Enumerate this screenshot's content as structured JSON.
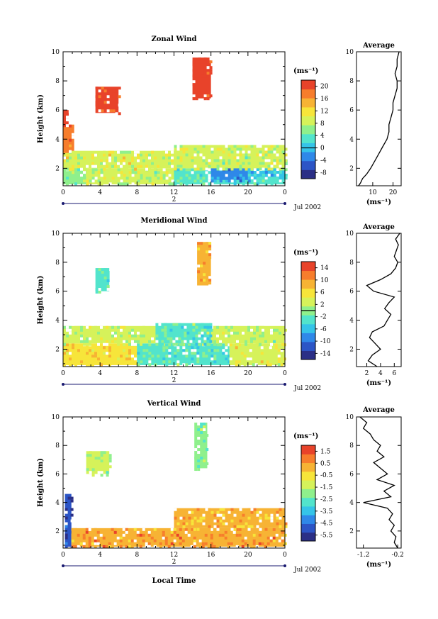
{
  "colors": {
    "colorbar": [
      "#2b2f86",
      "#2c55c6",
      "#2f88e8",
      "#35c4e8",
      "#52e4cc",
      "#8ff08c",
      "#d6f25a",
      "#f7e53a",
      "#f7b334",
      "#f77d2c",
      "#e8432a"
    ],
    "line": "#000000",
    "navy": "#1a1a70"
  },
  "chart_data": [
    {
      "type": "heatmap",
      "title": "Zonal Wind",
      "ylabel": "Height (km)",
      "xlabel": "",
      "x_ticks": [
        "0",
        "4",
        "8",
        "12",
        "16",
        "20",
        "0"
      ],
      "y_ticks": [
        "2",
        "4",
        "6",
        "8",
        "10"
      ],
      "xlim": [
        0,
        24
      ],
      "ylim": [
        0.8,
        10
      ],
      "day_label": "2",
      "date_label": "Jul 2002",
      "colorbar": {
        "unit": "(ms⁻¹)",
        "ticks": [
          "-8",
          "-4",
          "0",
          "4",
          "8",
          "12",
          "16",
          "20"
        ],
        "range": [
          -10,
          22
        ],
        "marked_level": 0
      },
      "cells": [
        {
          "t0": 0,
          "t1": 2.5,
          "z0": 0.9,
          "z1": 2.2,
          "v": 6
        },
        {
          "t0": 2.5,
          "t1": 12,
          "z0": 0.9,
          "z1": 2.0,
          "v": 8
        },
        {
          "t0": 12,
          "t1": 16,
          "z0": 0.9,
          "z1": 2.0,
          "v": 4
        },
        {
          "t0": 16,
          "t1": 24,
          "z0": 0.9,
          "z1": 2.2,
          "v": 2
        },
        {
          "t0": 16,
          "t1": 20,
          "z0": 1.2,
          "z1": 2.0,
          "v": -2
        },
        {
          "t0": 20,
          "t1": 24,
          "z0": 1.4,
          "z1": 2.6,
          "v": 0
        },
        {
          "t0": 0,
          "t1": 12,
          "z0": 2.0,
          "z1": 3.2,
          "v": 10
        },
        {
          "t0": 12,
          "t1": 24,
          "z0": 2.0,
          "z1": 3.6,
          "v": 8
        },
        {
          "t0": 0,
          "t1": 1.2,
          "z0": 3.2,
          "z1": 5.0,
          "v": 18
        },
        {
          "t0": 0,
          "t1": 0.6,
          "z0": 5.0,
          "z1": 6.0,
          "v": 20
        },
        {
          "t0": 3.5,
          "t1": 6,
          "z0": 5.8,
          "z1": 7.6,
          "v": 20
        },
        {
          "t0": 14,
          "t1": 16,
          "z0": 6.8,
          "z1": 9.6,
          "v": 22
        }
      ],
      "average_profile": {
        "title": "Average",
        "xlabel": "(ms⁻¹)",
        "x_ticks": [
          "10",
          "20"
        ],
        "xlim": [
          2,
          24
        ],
        "height": [
          0.8,
          1.0,
          1.3,
          1.6,
          2.0,
          2.5,
          3.0,
          3.5,
          4.0,
          4.5,
          5.0,
          5.5,
          6.0,
          6.5,
          7.0,
          7.5,
          8.0,
          8.5,
          9.0,
          9.5,
          10.0
        ],
        "values": [
          3,
          4,
          5,
          7,
          9,
          11,
          13,
          15,
          17,
          18,
          18,
          19,
          20,
          20,
          21,
          22,
          22,
          21,
          22,
          22,
          23
        ]
      }
    },
    {
      "type": "heatmap",
      "title": "Meridional Wind",
      "ylabel": "Height (km)",
      "xlabel": "",
      "x_ticks": [
        "0",
        "4",
        "8",
        "12",
        "16",
        "20",
        "0"
      ],
      "y_ticks": [
        "2",
        "4",
        "6",
        "8",
        "10"
      ],
      "xlim": [
        0,
        24
      ],
      "ylim": [
        0.8,
        10
      ],
      "day_label": "2",
      "date_label": "Jul 2002",
      "colorbar": {
        "unit": "(ms⁻¹)",
        "ticks": [
          "-14",
          "-10",
          "-6",
          "-2",
          "2",
          "6",
          "10",
          "14"
        ],
        "range": [
          -16,
          16
        ],
        "marked_level": 0
      },
      "cells": [
        {
          "t0": 0,
          "t1": 8,
          "z0": 0.9,
          "z1": 2.4,
          "v": 6
        },
        {
          "t0": 8,
          "t1": 18,
          "z0": 0.9,
          "z1": 2.4,
          "v": -2
        },
        {
          "t0": 18,
          "t1": 24,
          "z0": 0.9,
          "z1": 2.4,
          "v": 4
        },
        {
          "t0": 0,
          "t1": 24,
          "z0": 2.4,
          "z1": 3.6,
          "v": 2
        },
        {
          "t0": 10,
          "t1": 16,
          "z0": 2.4,
          "z1": 3.8,
          "v": -2
        },
        {
          "t0": 3.5,
          "t1": 5,
          "z0": 6.0,
          "z1": 7.6,
          "v": -2
        },
        {
          "t0": 14.5,
          "t1": 16,
          "z0": 6.4,
          "z1": 9.4,
          "v": 10
        }
      ],
      "average_profile": {
        "title": "Average",
        "xlabel": "(ms⁻¹)",
        "x_ticks": [
          "2",
          "4",
          "6"
        ],
        "xlim": [
          0.5,
          7
        ],
        "height": [
          0.8,
          1.2,
          1.6,
          2.0,
          2.4,
          2.8,
          3.2,
          3.6,
          4.0,
          4.4,
          4.8,
          5.2,
          5.6,
          6.0,
          6.4,
          6.8,
          7.2,
          7.6,
          8.0,
          8.4,
          8.8,
          9.2,
          9.6,
          10.0
        ],
        "values": [
          3.5,
          2.2,
          2.8,
          4.0,
          3.2,
          2.4,
          2.8,
          4.5,
          5.0,
          5.5,
          4.6,
          5.2,
          6.0,
          3.0,
          2.0,
          4.0,
          5.5,
          6.2,
          6.5,
          6.0,
          6.3,
          6.6,
          6.2,
          6.8
        ]
      }
    },
    {
      "type": "heatmap",
      "title": "Vertical Wind",
      "ylabel": "Height (km)",
      "xlabel": "Local Time",
      "x_ticks": [
        "0",
        "4",
        "8",
        "12",
        "16",
        "20",
        "0"
      ],
      "y_ticks": [
        "2",
        "4",
        "6",
        "8",
        "10"
      ],
      "xlim": [
        0,
        24
      ],
      "ylim": [
        0.8,
        10
      ],
      "day_label": "2",
      "date_label": "Jul 2002",
      "colorbar": {
        "unit": "(ms⁻¹)",
        "ticks": [
          "-5.5",
          "-4.5",
          "-3.5",
          "-2.5",
          "-1.5",
          "-0.5",
          "0.5",
          "1.5"
        ],
        "range": [
          -6,
          2
        ]
      },
      "cells": [
        {
          "t0": 0.2,
          "t1": 0.9,
          "z0": 0.9,
          "z1": 4.6,
          "v": -5
        },
        {
          "t0": 0.9,
          "t1": 24,
          "z0": 0.9,
          "z1": 2.2,
          "v": 0.5
        },
        {
          "t0": 12,
          "t1": 24,
          "z0": 2.2,
          "z1": 3.6,
          "v": 0
        },
        {
          "t0": 2.5,
          "t1": 5,
          "z0": 6.0,
          "z1": 7.6,
          "v": -1.5
        },
        {
          "t0": 14.2,
          "t1": 15.6,
          "z0": 6.4,
          "z1": 9.6,
          "v": -2.2
        }
      ],
      "average_profile": {
        "title": "Average",
        "xlabel": "(ms⁻¹)",
        "x_ticks": [
          "-1.2",
          "-0.2"
        ],
        "xlim": [
          -1.4,
          -0.1
        ],
        "height": [
          0.8,
          1.2,
          1.6,
          2.0,
          2.4,
          2.8,
          3.2,
          3.6,
          4.0,
          4.4,
          4.8,
          5.2,
          5.6,
          6.0,
          6.4,
          6.8,
          7.2,
          7.6,
          8.0,
          8.4,
          8.8,
          9.2,
          9.6,
          10.0
        ],
        "values": [
          -0.2,
          -0.3,
          -0.25,
          -0.4,
          -0.3,
          -0.45,
          -0.35,
          -0.5,
          -1.2,
          -0.4,
          -0.6,
          -0.3,
          -0.8,
          -0.5,
          -0.7,
          -0.9,
          -0.6,
          -0.8,
          -0.7,
          -0.9,
          -1.0,
          -1.2,
          -1.1,
          -1.3
        ]
      }
    }
  ]
}
